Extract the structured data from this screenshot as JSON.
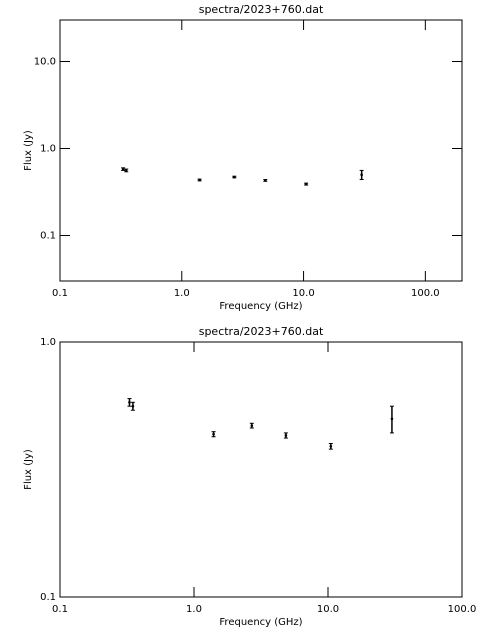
{
  "chart_data": [
    {
      "type": "scatter",
      "title": "spectra/2023+760.dat",
      "x_label": "Frequency (GHz)",
      "y_label": "Flux (Jy)",
      "log_x": true,
      "log_y": true,
      "xlim": [
        0.1,
        200
      ],
      "ylim": [
        0.03,
        30
      ],
      "xticks": [
        0.1,
        {
          "value": 1,
          "label": "1.0"
        },
        {
          "value": 10,
          "label": "10.0"
        },
        {
          "value": 100,
          "label": "100.0"
        }
      ],
      "yticks": [
        0.1,
        {
          "value": 1,
          "label": "1.0"
        },
        {
          "value": 10,
          "label": "10.0"
        }
      ],
      "color": "#000000",
      "x": [
        0.33,
        0.35,
        1.4,
        2.7,
        4.85,
        10.5,
        30
      ],
      "values": [
        0.58,
        0.56,
        0.435,
        0.47,
        0.43,
        0.39,
        0.5
      ],
      "errors": [
        0.02,
        0.02,
        0.01,
        0.01,
        0.01,
        0.01,
        0.06
      ]
    },
    {
      "type": "scatter",
      "title": "spectra/2023+760.dat",
      "x_label": "Frequency (GHz)",
      "y_label": "Flux (Jy)",
      "log_x": true,
      "log_y": true,
      "xlim": [
        0.1,
        100
      ],
      "ylim": [
        0.1,
        1
      ],
      "xticks": [
        0.1,
        {
          "value": 1,
          "label": "1.0"
        },
        {
          "value": 10,
          "label": "10.0"
        },
        {
          "value": 100,
          "label": "100.0"
        }
      ],
      "yticks": [
        0.1,
        {
          "value": 1,
          "label": "1.0"
        }
      ],
      "color": "#000000",
      "x": [
        0.33,
        0.35,
        1.4,
        2.7,
        4.85,
        10.5,
        30
      ],
      "values": [
        0.58,
        0.56,
        0.435,
        0.47,
        0.43,
        0.39,
        0.5
      ],
      "errors": [
        0.02,
        0.02,
        0.01,
        0.01,
        0.01,
        0.01,
        0.06
      ]
    }
  ]
}
